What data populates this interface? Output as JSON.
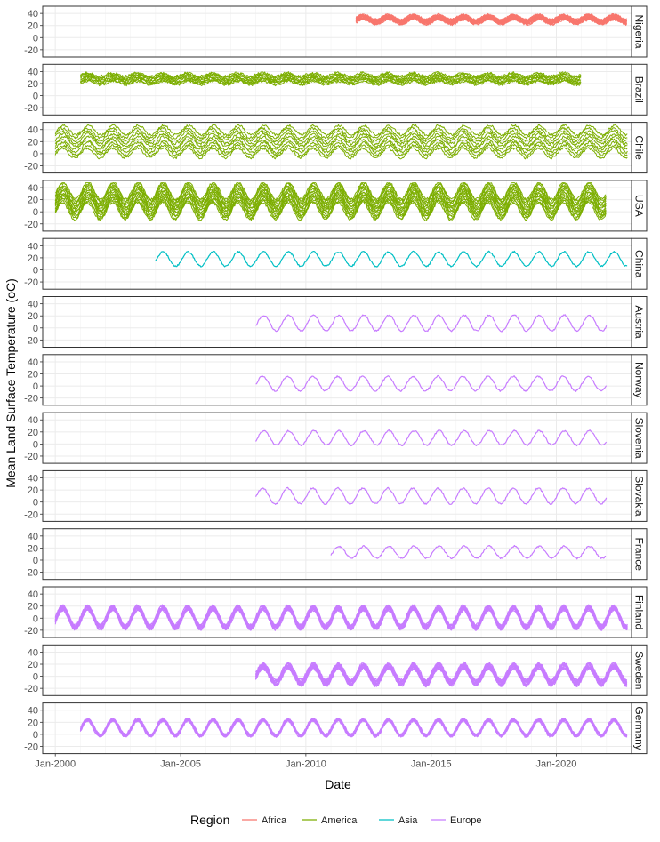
{
  "chart_data": {
    "type": "line",
    "xlabel": "Date",
    "ylabel": "Mean Land Surface Temperature (oC)",
    "x_range": [
      "1999-07-01",
      "2023-01-01"
    ],
    "ylim": [
      -32,
      52
    ],
    "x_ticks": [
      "Jan-2000",
      "Jan-2005",
      "Jan-2010",
      "Jan-2015",
      "Jan-2020"
    ],
    "y_ticks": [
      "-20",
      "0",
      "20",
      "40"
    ],
    "grid": true,
    "legend_position": "bottom",
    "legend": {
      "title": "Region",
      "entries": [
        {
          "name": "Africa",
          "color": "#F8766D"
        },
        {
          "name": "America",
          "color": "#7CAE00"
        },
        {
          "name": "Asia",
          "color": "#00BFC4"
        },
        {
          "name": "Europe",
          "color": "#C77CFF"
        }
      ]
    },
    "panels": [
      {
        "name": "Nigeria",
        "region": "Africa",
        "start": "2012-01-01",
        "end": "2022-11-01",
        "mean": 30,
        "amp": 4,
        "band": 8,
        "band_style": "solid"
      },
      {
        "name": "Brazil",
        "region": "America",
        "start": "2001-01-01",
        "end": "2021-01-01",
        "mean": 28,
        "amp": 3,
        "band": 14,
        "band_style": "lines"
      },
      {
        "name": "Chile",
        "region": "America",
        "start": "2000-01-01",
        "end": "2022-11-01",
        "mean": 20,
        "amp": 8,
        "band": 38,
        "band_style": "lines"
      },
      {
        "name": "USA",
        "region": "America",
        "start": "2000-01-01",
        "end": "2022-01-01",
        "mean": 18,
        "amp": 14,
        "band": 34,
        "band_style": "dense"
      },
      {
        "name": "China",
        "region": "Asia",
        "start": "2004-01-01",
        "end": "2022-11-01",
        "mean": 18,
        "amp": 12,
        "band": 0,
        "band_style": "single"
      },
      {
        "name": "Austria",
        "region": "Europe",
        "start": "2008-01-01",
        "end": "2022-01-01",
        "mean": 8,
        "amp": 13,
        "band": 0,
        "band_style": "single"
      },
      {
        "name": "Norway",
        "region": "Europe",
        "start": "2008-01-01",
        "end": "2022-01-01",
        "mean": 4,
        "amp": 12,
        "band": 0,
        "band_style": "single"
      },
      {
        "name": "Slovenia",
        "region": "Europe",
        "start": "2008-01-01",
        "end": "2022-01-01",
        "mean": 10,
        "amp": 12,
        "band": 0,
        "band_style": "single"
      },
      {
        "name": "Slovakia",
        "region": "Europe",
        "start": "2008-01-01",
        "end": "2022-01-01",
        "mean": 10,
        "amp": 13,
        "band": 0,
        "band_style": "single"
      },
      {
        "name": "France",
        "region": "Europe",
        "start": "2011-01-01",
        "end": "2022-01-01",
        "mean": 13,
        "amp": 10,
        "band": 0,
        "band_style": "single"
      },
      {
        "name": "Finland",
        "region": "Europe",
        "start": "2000-01-01",
        "end": "2022-11-01",
        "mean": 1,
        "amp": 16,
        "band": 8,
        "band_style": "dense"
      },
      {
        "name": "Sweden",
        "region": "Europe",
        "start": "2008-01-01",
        "end": "2022-11-01",
        "mean": 3,
        "amp": 14,
        "band": 10,
        "band_style": "dense"
      },
      {
        "name": "Germany",
        "region": "Europe",
        "start": "2001-01-01",
        "end": "2022-11-01",
        "mean": 11,
        "amp": 13,
        "band": 3,
        "band_style": "dense"
      }
    ]
  }
}
